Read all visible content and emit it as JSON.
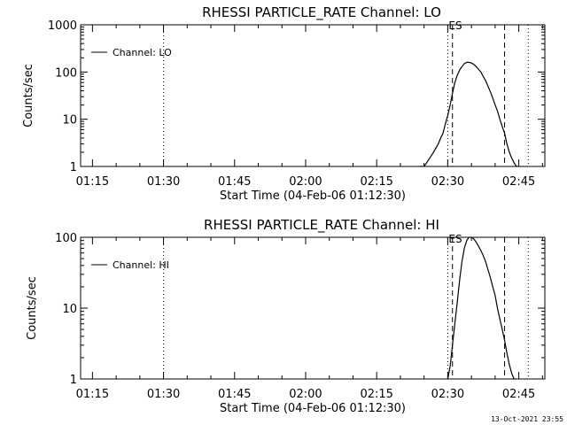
{
  "footer": {
    "timestamp": "13-Oct-2021 23:55"
  },
  "chart_data": [
    {
      "type": "line",
      "title": "RHESSI PARTICLE_RATE Channel: LO",
      "xlabel": "Start Time (04-Feb-06 01:12:30)",
      "ylabel": "Counts/sec",
      "y_scale": "log",
      "ylim": [
        1,
        1000
      ],
      "xlim": [
        "01:12:30",
        "02:50:30"
      ],
      "x_tick_labels": [
        "01:15",
        "01:30",
        "01:45",
        "02:00",
        "02:15",
        "02:30",
        "02:45"
      ],
      "y_tick_labels": [
        "1",
        "10",
        "100",
        "1000"
      ],
      "legend": {
        "entries": [
          "Channel: LO"
        ],
        "placement": "top-left"
      },
      "grid": false,
      "annotations": [
        "ES"
      ],
      "vlines": [
        {
          "x": "01:30",
          "style": "dotted"
        },
        {
          "x": "02:30",
          "style": "dotted"
        },
        {
          "x": "02:31",
          "style": "dashed"
        },
        {
          "x": "02:42",
          "style": "dashed"
        },
        {
          "x": "02:47",
          "style": "dotted"
        }
      ],
      "series": [
        {
          "name": "Channel: LO",
          "x": [
            "02:24",
            "02:25",
            "02:26",
            "02:27",
            "02:28",
            "02:28:30",
            "02:29",
            "02:29:30",
            "02:30",
            "02:30:30",
            "02:31",
            "02:31:30",
            "02:32",
            "02:32:30",
            "02:33",
            "02:33:30",
            "02:34",
            "02:34:30",
            "02:35",
            "02:35:30",
            "02:36",
            "02:36:30",
            "02:37",
            "02:37:30",
            "02:38",
            "02:38:30",
            "02:39",
            "02:39:30",
            "02:40",
            "02:40:30",
            "02:41",
            "02:41:30",
            "02:42",
            "02:42:30",
            "02:43",
            "02:43:30",
            "02:44",
            "02:44:30",
            "02:45"
          ],
          "y": [
            1,
            1,
            1.4,
            2,
            3,
            4,
            5,
            8,
            12,
            20,
            35,
            60,
            85,
            110,
            130,
            150,
            160,
            160,
            155,
            145,
            130,
            115,
            100,
            80,
            65,
            50,
            38,
            28,
            20,
            15,
            10,
            7,
            5,
            3,
            2,
            1.5,
            1.2,
            1,
            1
          ]
        }
      ]
    },
    {
      "type": "line",
      "title": "RHESSI PARTICLE_RATE Channel: HI",
      "xlabel": "Start Time (04-Feb-06 01:12:30)",
      "ylabel": "Counts/sec",
      "y_scale": "log",
      "ylim": [
        1,
        100
      ],
      "xlim": [
        "01:12:30",
        "02:50:30"
      ],
      "x_tick_labels": [
        "01:15",
        "01:30",
        "01:45",
        "02:00",
        "02:15",
        "02:30",
        "02:45"
      ],
      "y_tick_labels": [
        "1",
        "10",
        "100"
      ],
      "legend": {
        "entries": [
          "Channel: HI"
        ],
        "placement": "top-left"
      },
      "grid": false,
      "annotations": [
        "ES"
      ],
      "vlines": [
        {
          "x": "01:30",
          "style": "dotted"
        },
        {
          "x": "02:30",
          "style": "dotted"
        },
        {
          "x": "02:31",
          "style": "dashed"
        },
        {
          "x": "02:42",
          "style": "dashed"
        },
        {
          "x": "02:47",
          "style": "dotted"
        }
      ],
      "series": [
        {
          "name": "Channel: HI",
          "x": [
            "02:30",
            "02:30:30",
            "02:31",
            "02:31:30",
            "02:32",
            "02:32:30",
            "02:33",
            "02:33:30",
            "02:34",
            "02:34:30",
            "02:35",
            "02:35:30",
            "02:36",
            "02:36:30",
            "02:37",
            "02:37:30",
            "02:38",
            "02:38:30",
            "02:39",
            "02:39:30",
            "02:40",
            "02:40:30",
            "02:41",
            "02:41:30",
            "02:42",
            "02:42:30",
            "02:43",
            "02:43:30",
            "02:44",
            "02:44:30"
          ],
          "y": [
            1,
            1.5,
            3,
            6,
            12,
            25,
            45,
            70,
            90,
            100,
            100,
            95,
            85,
            75,
            65,
            55,
            45,
            35,
            27,
            20,
            15,
            10,
            7,
            5,
            3.5,
            2.3,
            1.6,
            1.2,
            1,
            1
          ]
        }
      ]
    }
  ]
}
